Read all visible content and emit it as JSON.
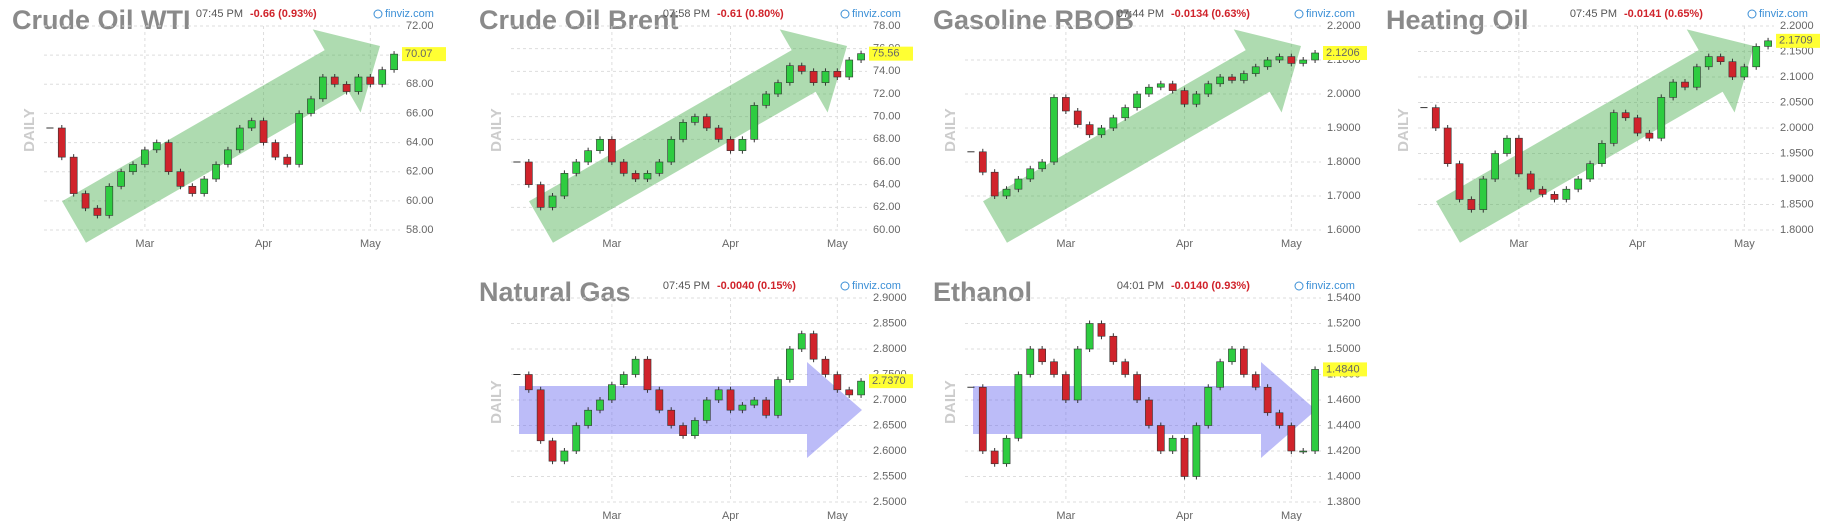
{
  "chart_data": [
    {
      "type": "candlestick",
      "title": "Crude Oil WTI",
      "time": "07:45 PM",
      "change": "-0.66 (0.93%)",
      "source": "finviz.com",
      "y_label": "DAILY",
      "trend": "up",
      "color_up": "#2ecc40",
      "color_down": "#d0232b",
      "categories": [
        null,
        null,
        null,
        null,
        null,
        null,
        null,
        null,
        "Mar",
        null,
        null,
        null,
        null,
        null,
        null,
        null,
        null,
        null,
        "Apr",
        null,
        null,
        null,
        null,
        null,
        null,
        null,
        null,
        "May",
        null,
        null
      ],
      "values": [
        65,
        63,
        60.5,
        59.5,
        59,
        61,
        62,
        62.5,
        63.5,
        64,
        62,
        61,
        60.5,
        61.5,
        62.5,
        63.5,
        65,
        65.5,
        64,
        63,
        62.5,
        66,
        67,
        68.5,
        68,
        67.5,
        68.5,
        68,
        69,
        70.07
      ],
      "last": {
        "value": 70.07,
        "label": "70.07"
      },
      "ylim": [
        58,
        72
      ],
      "yticks": [
        {
          "value": 58,
          "label": "58.00"
        },
        {
          "value": 60,
          "label": "60.00"
        },
        {
          "value": 62,
          "label": "62.00"
        },
        {
          "value": 64,
          "label": "64.00"
        },
        {
          "value": 66,
          "label": "66.00"
        },
        {
          "value": 68,
          "label": "68.00"
        },
        {
          "value": 70,
          "label": "70.00"
        },
        {
          "value": 72,
          "label": "72.00"
        }
      ],
      "grid": true
    },
    {
      "type": "candlestick",
      "title": "Crude Oil Brent",
      "time": "07:58 PM",
      "change": "-0.61 (0.80%)",
      "source": "finviz.com",
      "y_label": "DAILY",
      "trend": "up",
      "color_up": "#2ecc40",
      "color_down": "#d0232b",
      "categories": [
        null,
        null,
        null,
        null,
        null,
        null,
        null,
        null,
        "Mar",
        null,
        null,
        null,
        null,
        null,
        null,
        null,
        null,
        null,
        "Apr",
        null,
        null,
        null,
        null,
        null,
        null,
        null,
        null,
        "May",
        null,
        null
      ],
      "values": [
        66,
        64,
        62,
        63,
        65,
        66,
        67,
        68,
        66,
        65,
        64.5,
        65,
        66,
        68,
        69.5,
        70,
        69,
        68,
        67,
        68,
        71,
        72,
        73,
        74.5,
        74,
        73,
        74,
        73.5,
        75,
        75.56
      ],
      "last": {
        "value": 75.56,
        "label": "75.56"
      },
      "ylim": [
        60,
        78
      ],
      "yticks": [
        {
          "value": 60,
          "label": "60.00"
        },
        {
          "value": 62,
          "label": "62.00"
        },
        {
          "value": 64,
          "label": "64.00"
        },
        {
          "value": 66,
          "label": "66.00"
        },
        {
          "value": 68,
          "label": "68.00"
        },
        {
          "value": 70,
          "label": "70.00"
        },
        {
          "value": 72,
          "label": "72.00"
        },
        {
          "value": 74,
          "label": "74.00"
        },
        {
          "value": 76,
          "label": "76.00"
        },
        {
          "value": 78,
          "label": "78.00"
        }
      ],
      "grid": true
    },
    {
      "type": "candlestick",
      "title": "Gasoline RBOB",
      "time": "07:44 PM",
      "change": "-0.0134 (0.63%)",
      "source": "finviz.com",
      "y_label": "DAILY",
      "trend": "up",
      "color_up": "#2ecc40",
      "color_down": "#d0232b",
      "categories": [
        null,
        null,
        null,
        null,
        null,
        null,
        null,
        null,
        "Mar",
        null,
        null,
        null,
        null,
        null,
        null,
        null,
        null,
        null,
        "Apr",
        null,
        null,
        null,
        null,
        null,
        null,
        null,
        null,
        "May",
        null,
        null
      ],
      "values": [
        1.83,
        1.77,
        1.7,
        1.72,
        1.75,
        1.78,
        1.8,
        1.99,
        1.95,
        1.91,
        1.88,
        1.9,
        1.93,
        1.96,
        2,
        2.02,
        2.03,
        2.01,
        1.97,
        2,
        2.03,
        2.05,
        2.04,
        2.06,
        2.08,
        2.1,
        2.11,
        2.09,
        2.1,
        2.1206
      ],
      "last": {
        "value": 2.1206,
        "label": "2.1206"
      },
      "ylim": [
        1.6,
        2.2
      ],
      "yticks": [
        {
          "value": 1.6,
          "label": "1.6000"
        },
        {
          "value": 1.7,
          "label": "1.7000"
        },
        {
          "value": 1.8,
          "label": "1.8000"
        },
        {
          "value": 1.9,
          "label": "1.9000"
        },
        {
          "value": 2,
          "label": "2.0000"
        },
        {
          "value": 2.1,
          "label": "2.1000"
        },
        {
          "value": 2.2,
          "label": "2.2000"
        }
      ],
      "grid": true
    },
    {
      "type": "candlestick",
      "title": "Heating Oil",
      "time": "07:45 PM",
      "change": "-0.0141 (0.65%)",
      "source": "finviz.com",
      "y_label": "DAILY",
      "trend": "up",
      "color_up": "#2ecc40",
      "color_down": "#d0232b",
      "categories": [
        null,
        null,
        null,
        null,
        null,
        null,
        null,
        null,
        "Mar",
        null,
        null,
        null,
        null,
        null,
        null,
        null,
        null,
        null,
        "Apr",
        null,
        null,
        null,
        null,
        null,
        null,
        null,
        null,
        "May",
        null,
        null
      ],
      "values": [
        2.04,
        2,
        1.93,
        1.86,
        1.84,
        1.9,
        1.95,
        1.98,
        1.91,
        1.88,
        1.87,
        1.86,
        1.88,
        1.9,
        1.93,
        1.97,
        2.03,
        2.02,
        1.99,
        1.98,
        2.06,
        2.09,
        2.08,
        2.12,
        2.14,
        2.13,
        2.1,
        2.12,
        2.16,
        2.1709
      ],
      "last": {
        "value": 2.1709,
        "label": "2.1709"
      },
      "ylim": [
        1.8,
        2.2
      ],
      "yticks": [
        {
          "value": 1.8,
          "label": "1.8000"
        },
        {
          "value": 1.85,
          "label": "1.8500"
        },
        {
          "value": 1.9,
          "label": "1.9000"
        },
        {
          "value": 1.95,
          "label": "1.9500"
        },
        {
          "value": 2,
          "label": "2.0000"
        },
        {
          "value": 2.05,
          "label": "2.0500"
        },
        {
          "value": 2.1,
          "label": "2.1000"
        },
        {
          "value": 2.15,
          "label": "2.1500"
        },
        {
          "value": 2.2,
          "label": "2.2000"
        }
      ],
      "grid": true
    },
    {
      "type": "candlestick",
      "title": "Natural Gas",
      "time": "07:45 PM",
      "change": "-0.0040 (0.15%)",
      "source": "finviz.com",
      "y_label": "DAILY",
      "trend": "flat",
      "color_up": "#2ecc40",
      "color_down": "#d0232b",
      "categories": [
        null,
        null,
        null,
        null,
        null,
        null,
        null,
        null,
        "Mar",
        null,
        null,
        null,
        null,
        null,
        null,
        null,
        null,
        null,
        "Apr",
        null,
        null,
        null,
        null,
        null,
        null,
        null,
        null,
        "May",
        null,
        null
      ],
      "values": [
        2.75,
        2.72,
        2.62,
        2.58,
        2.6,
        2.65,
        2.68,
        2.7,
        2.73,
        2.75,
        2.78,
        2.72,
        2.68,
        2.65,
        2.63,
        2.66,
        2.7,
        2.72,
        2.68,
        2.69,
        2.7,
        2.67,
        2.74,
        2.8,
        2.83,
        2.78,
        2.75,
        2.72,
        2.71,
        2.737
      ],
      "last": {
        "value": 2.737,
        "label": "2.7370"
      },
      "ylim": [
        2.5,
        2.9
      ],
      "yticks": [
        {
          "value": 2.5,
          "label": "2.5000"
        },
        {
          "value": 2.55,
          "label": "2.5500"
        },
        {
          "value": 2.6,
          "label": "2.6000"
        },
        {
          "value": 2.65,
          "label": "2.6500"
        },
        {
          "value": 2.7,
          "label": "2.7000"
        },
        {
          "value": 2.75,
          "label": "2.7500"
        },
        {
          "value": 2.8,
          "label": "2.8000"
        },
        {
          "value": 2.85,
          "label": "2.8500"
        },
        {
          "value": 2.9,
          "label": "2.9000"
        }
      ],
      "grid": true
    },
    {
      "type": "candlestick",
      "title": "Ethanol",
      "time": "04:01 PM",
      "change": "-0.0140 (0.93%)",
      "source": "finviz.com",
      "y_label": "DAILY",
      "trend": "flat",
      "color_up": "#2ecc40",
      "color_down": "#d0232b",
      "categories": [
        null,
        null,
        null,
        null,
        null,
        null,
        null,
        null,
        "Mar",
        null,
        null,
        null,
        null,
        null,
        null,
        null,
        null,
        null,
        "Apr",
        null,
        null,
        null,
        null,
        null,
        null,
        null,
        null,
        "May",
        null,
        null
      ],
      "values": [
        1.47,
        1.42,
        1.41,
        1.43,
        1.48,
        1.5,
        1.49,
        1.48,
        1.46,
        1.5,
        1.52,
        1.51,
        1.49,
        1.48,
        1.46,
        1.44,
        1.42,
        1.43,
        1.4,
        1.44,
        1.47,
        1.49,
        1.5,
        1.48,
        1.47,
        1.45,
        1.44,
        1.42,
        1.42,
        1.484
      ],
      "last": {
        "value": 1.484,
        "label": "1.4840"
      },
      "ylim": [
        1.38,
        1.54
      ],
      "yticks": [
        {
          "value": 1.38,
          "label": "1.3800"
        },
        {
          "value": 1.4,
          "label": "1.4000"
        },
        {
          "value": 1.42,
          "label": "1.4200"
        },
        {
          "value": 1.44,
          "label": "1.4400"
        },
        {
          "value": 1.46,
          "label": "1.4600"
        },
        {
          "value": 1.48,
          "label": "1.4800"
        },
        {
          "value": 1.5,
          "label": "1.5000"
        },
        {
          "value": 1.52,
          "label": "1.5200"
        },
        {
          "value": 1.54,
          "label": "1.5400"
        }
      ],
      "grid": true
    }
  ]
}
